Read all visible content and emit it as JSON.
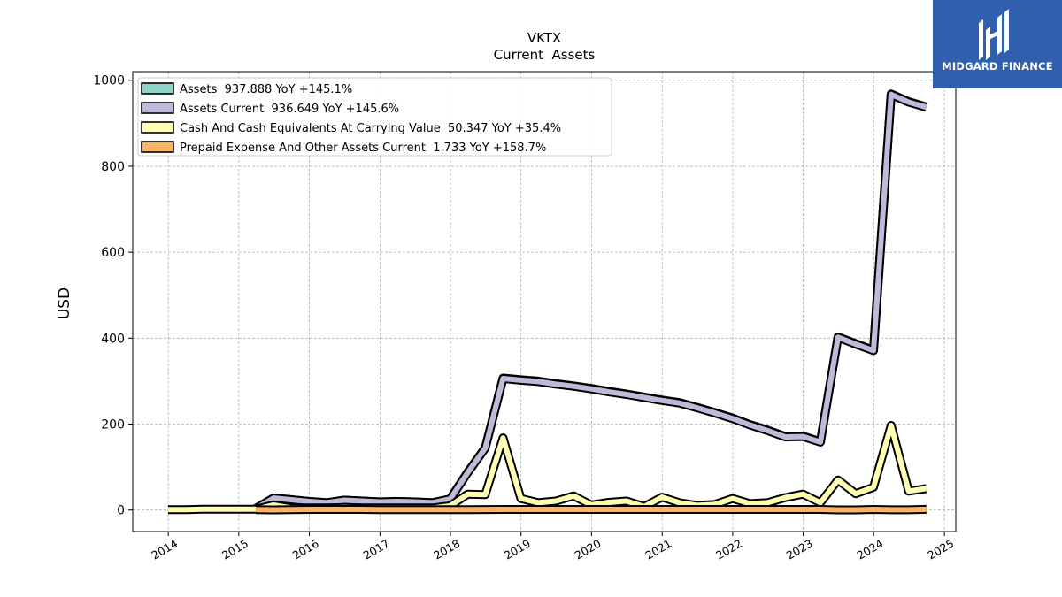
{
  "brand": {
    "name": "MIDGARD FINANCE",
    "bg_color": "#2f5fae",
    "icon": "midgard-logo-icon"
  },
  "chart_data": {
    "type": "line",
    "title": "VKTX",
    "subtitle": "Current  Assets",
    "ylabel": "USD",
    "xlabel": "",
    "xlim": [
      "2013-07-01",
      "2025-03-01"
    ],
    "ylim": [
      -50,
      1020
    ],
    "x_ticks": [
      "2014",
      "2015",
      "2016",
      "2017",
      "2018",
      "2019",
      "2020",
      "2021",
      "2022",
      "2023",
      "2024",
      "2025"
    ],
    "y_ticks": [
      0,
      200,
      400,
      600,
      800,
      1000
    ],
    "grid": true,
    "legend_position": "top-left",
    "series": [
      {
        "name": "Assets  937.888 YoY +145.1%",
        "color": "#8dd3c7",
        "points": [
          [
            "2015-03-31",
            4
          ],
          [
            "2015-06-30",
            28
          ],
          [
            "2015-09-30",
            24
          ],
          [
            "2015-12-31",
            20
          ],
          [
            "2016-03-31",
            17
          ],
          [
            "2016-06-30",
            23
          ],
          [
            "2016-09-30",
            21
          ],
          [
            "2016-12-31",
            19
          ],
          [
            "2017-03-31",
            20
          ],
          [
            "2017-06-30",
            19
          ],
          [
            "2017-09-30",
            17
          ],
          [
            "2017-12-31",
            26
          ],
          [
            "2018-03-31",
            88
          ],
          [
            "2018-06-30",
            145
          ],
          [
            "2018-09-30",
            307
          ],
          [
            "2018-12-31",
            303
          ],
          [
            "2019-03-31",
            300
          ],
          [
            "2019-06-30",
            294
          ],
          [
            "2019-09-30",
            289
          ],
          [
            "2019-12-31",
            283
          ],
          [
            "2020-03-31",
            276
          ],
          [
            "2020-06-30",
            270
          ],
          [
            "2020-09-30",
            263
          ],
          [
            "2020-12-31",
            256
          ],
          [
            "2021-03-31",
            250
          ],
          [
            "2021-06-30",
            239
          ],
          [
            "2021-09-30",
            227
          ],
          [
            "2021-12-31",
            214
          ],
          [
            "2022-03-31",
            199
          ],
          [
            "2022-06-30",
            186
          ],
          [
            "2022-09-30",
            171
          ],
          [
            "2022-12-31",
            172
          ],
          [
            "2023-03-31",
            159
          ],
          [
            "2023-06-30",
            403
          ],
          [
            "2023-09-30",
            387
          ],
          [
            "2023-12-31",
            372
          ],
          [
            "2024-03-31",
            968
          ],
          [
            "2024-06-30",
            950
          ],
          [
            "2024-09-30",
            938
          ]
        ]
      },
      {
        "name": "Assets Current  936.649 YoY +145.6%",
        "color": "#bebada",
        "points": [
          [
            "2015-03-31",
            4
          ],
          [
            "2015-06-30",
            28
          ],
          [
            "2015-09-30",
            24
          ],
          [
            "2015-12-31",
            20
          ],
          [
            "2016-03-31",
            17
          ],
          [
            "2016-06-30",
            23
          ],
          [
            "2016-09-30",
            21
          ],
          [
            "2016-12-31",
            19
          ],
          [
            "2017-03-31",
            20
          ],
          [
            "2017-06-30",
            19
          ],
          [
            "2017-09-30",
            17
          ],
          [
            "2017-12-31",
            26
          ],
          [
            "2018-03-31",
            87
          ],
          [
            "2018-06-30",
            144
          ],
          [
            "2018-09-30",
            306
          ],
          [
            "2018-12-31",
            302
          ],
          [
            "2019-03-31",
            299
          ],
          [
            "2019-06-30",
            293
          ],
          [
            "2019-09-30",
            288
          ],
          [
            "2019-12-31",
            282
          ],
          [
            "2020-03-31",
            275
          ],
          [
            "2020-06-30",
            269
          ],
          [
            "2020-09-30",
            262
          ],
          [
            "2020-12-31",
            255
          ],
          [
            "2021-03-31",
            249
          ],
          [
            "2021-06-30",
            238
          ],
          [
            "2021-09-30",
            226
          ],
          [
            "2021-12-31",
            213
          ],
          [
            "2022-03-31",
            198
          ],
          [
            "2022-06-30",
            185
          ],
          [
            "2022-09-30",
            170
          ],
          [
            "2022-12-31",
            171
          ],
          [
            "2023-03-31",
            158
          ],
          [
            "2023-06-30",
            402
          ],
          [
            "2023-09-30",
            386
          ],
          [
            "2023-12-31",
            371
          ],
          [
            "2024-03-31",
            967
          ],
          [
            "2024-06-30",
            949
          ],
          [
            "2024-09-30",
            937
          ]
        ]
      },
      {
        "name": "Cash And Cash Equivalents At Carrying Value  50.347 YoY +35.4%",
        "color": "#ffffb3",
        "points": [
          [
            "2013-12-31",
            1
          ],
          [
            "2014-03-31",
            1
          ],
          [
            "2014-06-30",
            2
          ],
          [
            "2014-09-30",
            2
          ],
          [
            "2014-12-31",
            2
          ],
          [
            "2015-03-31",
            2
          ],
          [
            "2015-06-30",
            12
          ],
          [
            "2015-09-30",
            5
          ],
          [
            "2015-12-31",
            5
          ],
          [
            "2016-03-31",
            5
          ],
          [
            "2016-06-30",
            6
          ],
          [
            "2016-09-30",
            5
          ],
          [
            "2016-12-31",
            5
          ],
          [
            "2017-03-31",
            5
          ],
          [
            "2017-06-30",
            5
          ],
          [
            "2017-09-30",
            5
          ],
          [
            "2017-12-31",
            10
          ],
          [
            "2018-03-31",
            37
          ],
          [
            "2018-06-30",
            36
          ],
          [
            "2018-09-30",
            168
          ],
          [
            "2018-12-31",
            27
          ],
          [
            "2019-03-31",
            17
          ],
          [
            "2019-06-30",
            21
          ],
          [
            "2019-09-30",
            33
          ],
          [
            "2019-12-31",
            12
          ],
          [
            "2020-03-31",
            18
          ],
          [
            "2020-06-30",
            21
          ],
          [
            "2020-09-30",
            8
          ],
          [
            "2020-12-31",
            30
          ],
          [
            "2021-03-31",
            17
          ],
          [
            "2021-06-30",
            11
          ],
          [
            "2021-09-30",
            13
          ],
          [
            "2021-12-31",
            27
          ],
          [
            "2022-03-31",
            15
          ],
          [
            "2022-06-30",
            17
          ],
          [
            "2022-09-30",
            29
          ],
          [
            "2022-12-31",
            37
          ],
          [
            "2023-03-31",
            17
          ],
          [
            "2023-06-30",
            70
          ],
          [
            "2023-09-30",
            38
          ],
          [
            "2023-12-31",
            53
          ],
          [
            "2024-03-31",
            197
          ],
          [
            "2024-06-30",
            44
          ],
          [
            "2024-09-30",
            50
          ]
        ]
      },
      {
        "name": "Prepaid Expense And Other Assets Current  1.733 YoY +158.7%",
        "color": "#fdb462",
        "points": [
          [
            "2015-03-31",
            1
          ],
          [
            "2015-06-30",
            0.5
          ],
          [
            "2015-09-30",
            1
          ],
          [
            "2015-12-31",
            1.5
          ],
          [
            "2016-03-31",
            1.5
          ],
          [
            "2016-06-30",
            1.5
          ],
          [
            "2016-09-30",
            1.5
          ],
          [
            "2016-12-31",
            1
          ],
          [
            "2017-03-31",
            1
          ],
          [
            "2017-06-30",
            1
          ],
          [
            "2017-09-30",
            1
          ],
          [
            "2017-12-31",
            1
          ],
          [
            "2018-03-31",
            1
          ],
          [
            "2018-06-30",
            1.2
          ],
          [
            "2018-09-30",
            1.5
          ],
          [
            "2018-12-31",
            1.5
          ],
          [
            "2019-03-31",
            1.5
          ],
          [
            "2019-06-30",
            1.5
          ],
          [
            "2019-09-30",
            1.5
          ],
          [
            "2019-12-31",
            1.5
          ],
          [
            "2020-03-31",
            1.5
          ],
          [
            "2020-06-30",
            1.5
          ],
          [
            "2020-09-30",
            1.5
          ],
          [
            "2020-12-31",
            1.5
          ],
          [
            "2021-03-31",
            1.5
          ],
          [
            "2021-06-30",
            1.5
          ],
          [
            "2021-09-30",
            1.5
          ],
          [
            "2021-12-31",
            1.5
          ],
          [
            "2022-03-31",
            1.5
          ],
          [
            "2022-06-30",
            1.5
          ],
          [
            "2022-09-30",
            1.5
          ],
          [
            "2022-12-31",
            1.5
          ],
          [
            "2023-03-31",
            1.5
          ],
          [
            "2023-06-30",
            0.5
          ],
          [
            "2023-09-30",
            0.5
          ],
          [
            "2023-12-31",
            1.5
          ],
          [
            "2024-03-31",
            0.7
          ],
          [
            "2024-06-30",
            0.6
          ],
          [
            "2024-09-30",
            1.7
          ]
        ]
      }
    ]
  }
}
